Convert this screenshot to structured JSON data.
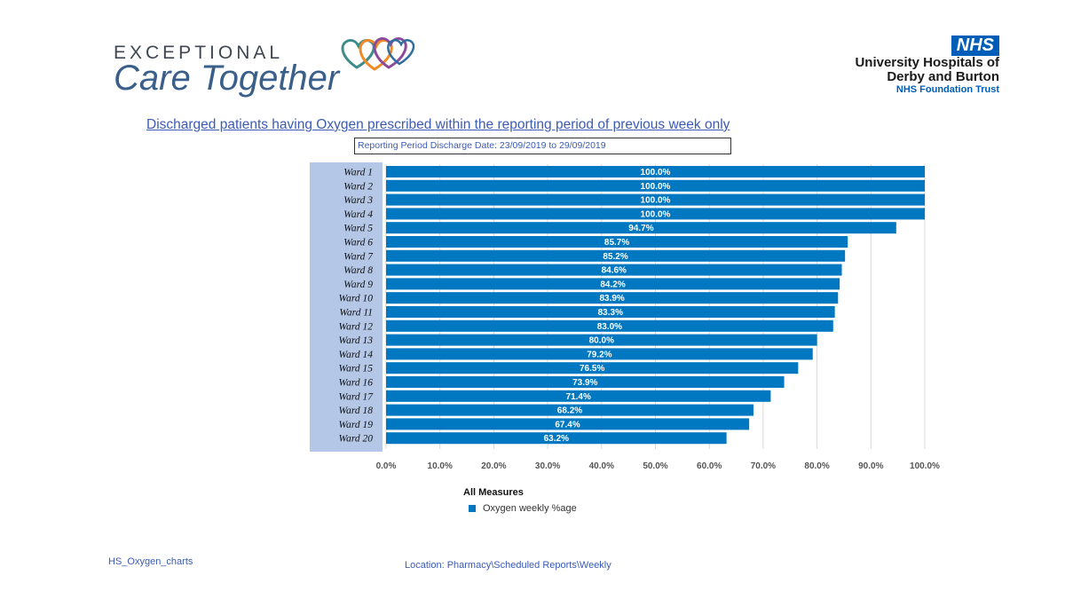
{
  "logo": {
    "line1": "EXCEPTIONAL",
    "line2": "Care Together"
  },
  "nhs": {
    "badge": "NHS",
    "trust_line1": "University Hospitals of",
    "trust_line2": "Derby and Burton",
    "trust_sub": "NHS Foundation Trust",
    "colors": {
      "badge": "#005eb8"
    }
  },
  "report": {
    "title": "Discharged patients having Oxygen prescribed within the reporting period of previous week only",
    "period": "Reporting Period Discharge Date: 23/09/2019 to 29/09/2019"
  },
  "chart_data": {
    "type": "bar",
    "orientation": "horizontal",
    "title": "Discharged patients having Oxygen prescribed within the reporting period of previous week only",
    "categories": [
      "Ward 1",
      "Ward 2",
      "Ward 3",
      "Ward 4",
      "Ward 5",
      "Ward 6",
      "Ward 7",
      "Ward 8",
      "Ward 9",
      "Ward 10",
      "Ward 11",
      "Ward 12",
      "Ward 13",
      "Ward 14",
      "Ward 15",
      "Ward 16",
      "Ward 17",
      "Ward 18",
      "Ward 19",
      "Ward 20"
    ],
    "series": [
      {
        "name": "Oxygen weekly %age",
        "values": [
          100.0,
          100.0,
          100.0,
          100.0,
          94.7,
          85.7,
          85.2,
          84.6,
          84.2,
          83.9,
          83.3,
          83.0,
          80.0,
          79.2,
          76.5,
          73.9,
          71.4,
          68.2,
          67.4,
          63.2
        ],
        "labels": [
          "100.0%",
          "100.0%",
          "100.0%",
          "100.0%",
          "94.7%",
          "85.7%",
          "85.2%",
          "84.6%",
          "84.2%",
          "83.9%",
          "83.3%",
          "83.0%",
          "80.0%",
          "79.2%",
          "76.5%",
          "73.9%",
          "71.4%",
          "68.2%",
          "67.4%",
          "63.2%"
        ]
      }
    ],
    "x_ticks": [
      "0.0%",
      "10.0%",
      "20.0%",
      "30.0%",
      "40.0%",
      "50.0%",
      "60.0%",
      "70.0%",
      "80.0%",
      "90.0%",
      "100.0%"
    ],
    "xlim": [
      0,
      100
    ],
    "grid": true,
    "legend_title": "All Measures",
    "legend_position": "bottom",
    "colors": {
      "bar": "#0078c1",
      "category_panel": "#b4c7e7",
      "grid": "#d9d9d9"
    }
  },
  "footer": {
    "left": "HS_Oxygen_charts",
    "right": "Location: Pharmacy\\Scheduled Reports\\Weekly"
  }
}
